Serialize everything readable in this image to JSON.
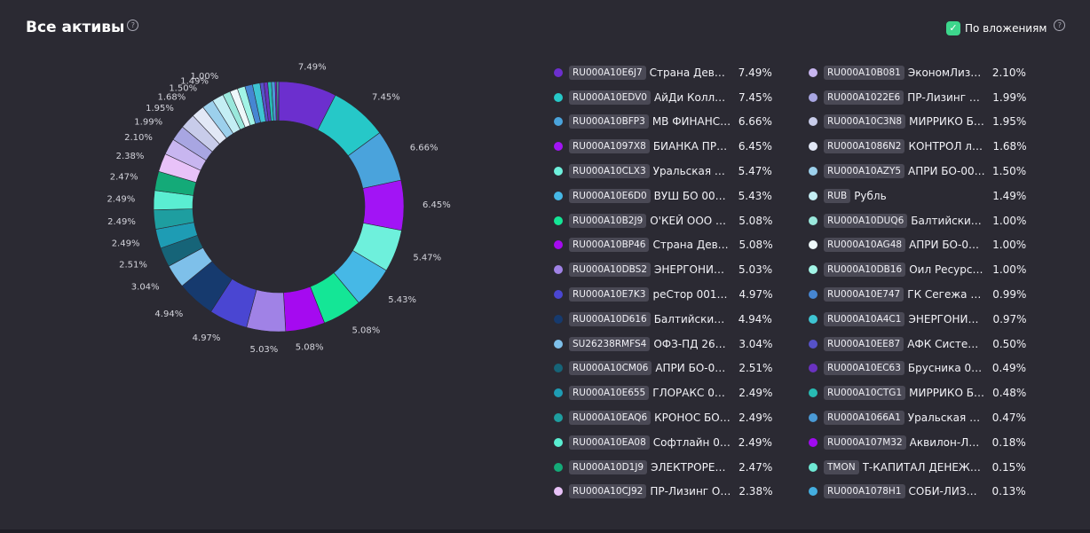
{
  "header": {
    "title": "Все активы",
    "help_glyph": "?"
  },
  "toggle": {
    "label": "По вложениям",
    "checked": true,
    "check_glyph": "✓",
    "help_glyph": "?"
  },
  "chart_data": {
    "type": "pie",
    "donut": true,
    "slices": [
      {
        "code": "RU000A10E6J7",
        "name": "Страна Девелоп...",
        "value": 7.49,
        "label": "7.49%",
        "color": "#6c2fce"
      },
      {
        "code": "RU000A10EDV0",
        "name": "АйДи Коллект ...",
        "value": 7.45,
        "label": "7.45%",
        "color": "#26c8c8"
      },
      {
        "code": "RU000A10BFP3",
        "name": "МВ ФИНАНС 00...",
        "value": 6.66,
        "label": "6.66%",
        "color": "#4aa3dc"
      },
      {
        "code": "RU000A1097X8",
        "name": "БИАНКА ПРЕМ...",
        "value": 6.45,
        "label": "6.45%",
        "color": "#a214f5"
      },
      {
        "code": "RU000A10CLX3",
        "name": "Уральская Стал...",
        "value": 5.47,
        "label": "5.47%",
        "color": "#6ef0dc"
      },
      {
        "code": "RU000A10E6D0",
        "name": "ВУШ БО 001Р-05",
        "value": 5.43,
        "label": "5.43%",
        "color": "#46b8e6"
      },
      {
        "code": "RU000A10B2J9",
        "name": "О'КЕЙ ООО БО ...",
        "value": 5.08,
        "label": "5.08%",
        "color": "#14e696"
      },
      {
        "code": "RU000A10BP46",
        "name": "Страна Девело...",
        "value": 5.08,
        "label": "5.08%",
        "color": "#a50af0"
      },
      {
        "code": "RU000A10DBS2",
        "name": "ЭНЕРГОНИКА 0...",
        "value": 5.03,
        "label": "5.03%",
        "color": "#a082e6"
      },
      {
        "code": "RU000A10E7K3",
        "name": "реСтор 001Р-03",
        "value": 4.97,
        "label": "4.97%",
        "color": "#4a46d2"
      },
      {
        "code": "RU000A10D616",
        "name": "Балтийский лиз...",
        "value": 4.94,
        "label": "4.94%",
        "color": "#163a6e"
      },
      {
        "code": "SU26238RMFS4",
        "name": "ОФЗ-ПД 26238 ...",
        "value": 3.04,
        "label": "3.04%",
        "color": "#7ec0ea"
      },
      {
        "code": "RU000A10CM06",
        "name": "АПРИ БО-002Р...",
        "value": 2.51,
        "label": "2.51%",
        "color": "#166478"
      },
      {
        "code": "RU000A10E655",
        "name": "ГЛОРАКС 001Р-05",
        "value": 2.49,
        "label": "2.49%",
        "color": "#1e9cb4"
      },
      {
        "code": "RU000A10EAQ6",
        "name": "КРОНОС БО-01",
        "value": 2.49,
        "label": "2.49%",
        "color": "#1e9ea0"
      },
      {
        "code": "RU000A10EA08",
        "name": "Софтлайн 002Р-...",
        "value": 2.49,
        "label": "2.49%",
        "color": "#5aeed2"
      },
      {
        "code": "RU000A10D1J9",
        "name": "ЭЛЕКТРОРЕШЕН...",
        "value": 2.47,
        "label": "2.47%",
        "color": "#14aa78"
      },
      {
        "code": "RU000A10CJ92",
        "name": "ПР-Лизинг ООО...",
        "value": 2.38,
        "label": "2.38%",
        "color": "#e8c2f8"
      },
      {
        "code": "RU000A10B081",
        "name": "ЭкономЛизинг ...",
        "value": 2.1,
        "label": "2.10%",
        "color": "#c8b6f0"
      },
      {
        "code": "RU000A1022E6",
        "name": "ПР-Лизинг ООО...",
        "value": 1.99,
        "label": "1.99%",
        "color": "#a8a6e2"
      },
      {
        "code": "RU000A10C3N8",
        "name": "МИРРИКО БО-...",
        "value": 1.95,
        "label": "1.95%",
        "color": "#c8ccea"
      },
      {
        "code": "RU000A1086N2",
        "name": "КОНТРОЛ лизи...",
        "value": 1.68,
        "label": "1.68%",
        "color": "#e2e8f6"
      },
      {
        "code": "RU000A10AZY5",
        "name": "АПРИ БО-002Р-...",
        "value": 1.5,
        "label": "1.50%",
        "color": "#9cd0ec"
      },
      {
        "code": "RUB",
        "name": "Рубль",
        "value": 1.49,
        "label": "1.49%",
        "color": "#c4eef4"
      },
      {
        "code": "RU000A10DUQ6",
        "name": "Балтийский ли...",
        "value": 1.0,
        "label": "1.00%",
        "color": "#9ae8dc"
      },
      {
        "code": "RU000A10AG48",
        "name": "АПРИ БО-002Р-...",
        "value": 1.0,
        "label": "1.00%",
        "color": "#eef8fa"
      },
      {
        "code": "RU000A10DB16",
        "name": "Оил Ресурс 001...",
        "value": 1.0,
        "label": "1.00%",
        "color": "#a2f4e6"
      },
      {
        "code": "RU000A10E747",
        "name": "ГК Сегежа 003Р-...",
        "value": 0.99,
        "label": "0.99%",
        "color": "#4686d2"
      },
      {
        "code": "RU000A10A4C1",
        "name": "ЭНЕРГОНИКА 0...",
        "value": 0.97,
        "label": "0.97%",
        "color": "#3ec4d2"
      },
      {
        "code": "RU000A10EE87",
        "name": "АФК Система Б...",
        "value": 0.5,
        "label": "0.50%",
        "color": "#5652c8"
      },
      {
        "code": "RU000A10EC63",
        "name": "Брусника 002Р-...",
        "value": 0.49,
        "label": "0.49%",
        "color": "#6a32c0"
      },
      {
        "code": "RU000A10CTG1",
        "name": "МИРРИКО БО-...",
        "value": 0.48,
        "label": "0.48%",
        "color": "#28bcb4"
      },
      {
        "code": "RU000A1066A1",
        "name": "Уральская Стал...",
        "value": 0.47,
        "label": "0.47%",
        "color": "#4a9ad6"
      },
      {
        "code": "RU000A107M32",
        "name": "Аквилон-Лизи...",
        "value": 0.18,
        "label": "0.18%",
        "color": "#a00af0"
      },
      {
        "code": "TMON",
        "name": "Т-КАПИТАЛ ДЕНЕЖНЫ...",
        "value": 0.15,
        "label": "0.15%",
        "color": "#6ee8d4"
      },
      {
        "code": "RU000A1078H1",
        "name": "СОБИ-ЛИЗИНГ ...",
        "value": 0.13,
        "label": "0.13%",
        "color": "#44aee0"
      }
    ],
    "shown_slice_labels": 25,
    "legend_placement": "right"
  }
}
